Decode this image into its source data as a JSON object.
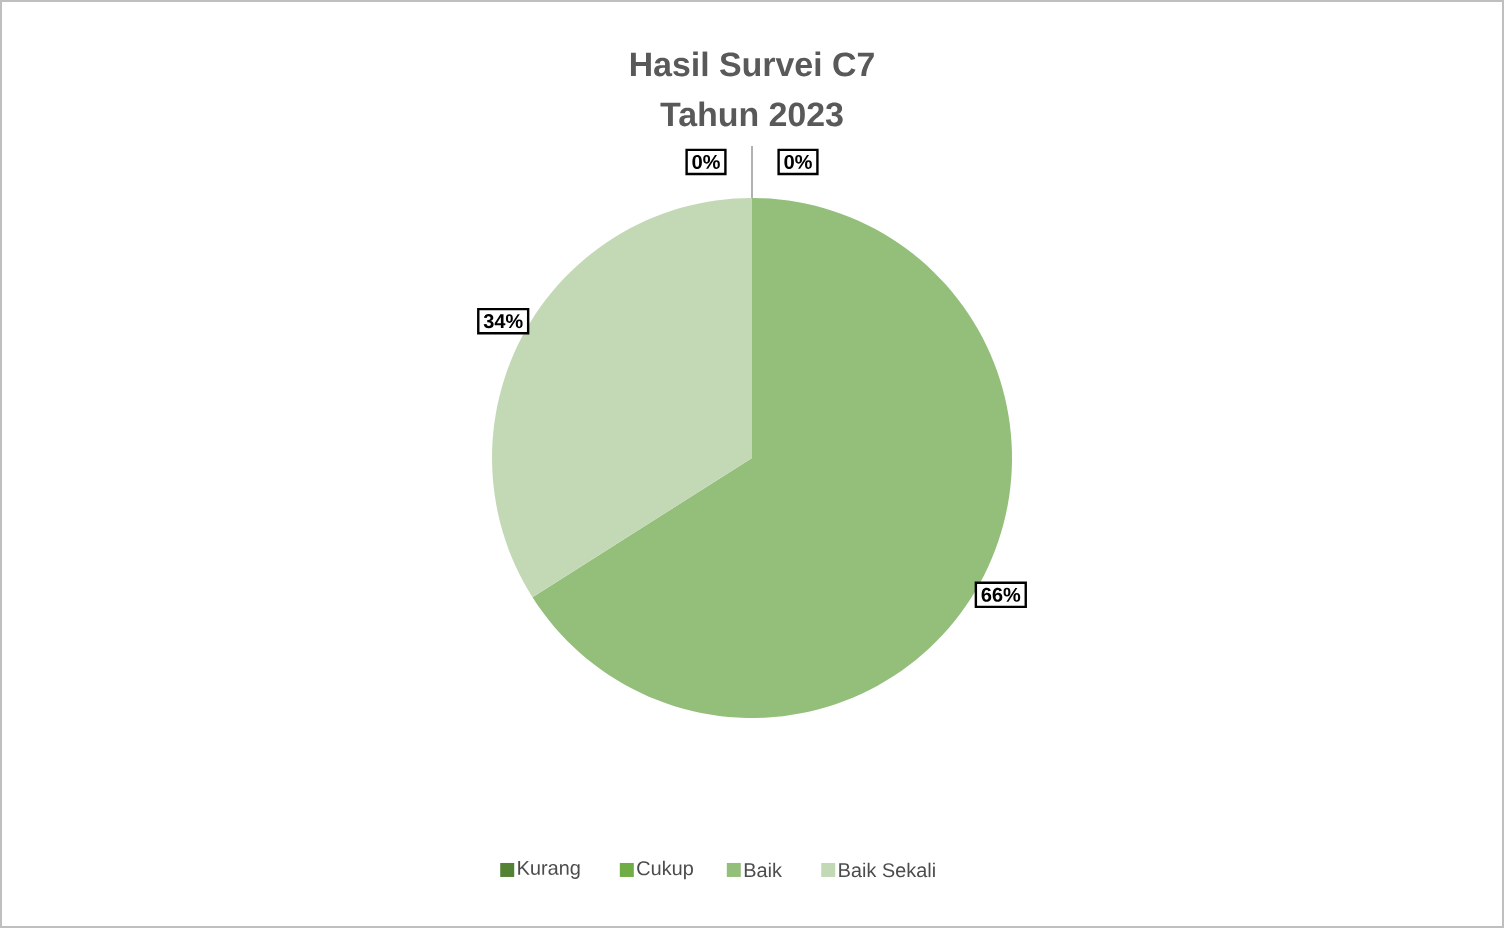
{
  "chart_data": {
    "type": "pie",
    "title": "Hasil Survei C7",
    "subtitle": "Tahun 2023",
    "categories": [
      "Kurang",
      "Cukup",
      "Baik",
      "Baik Sekali"
    ],
    "values": [
      0,
      0,
      66,
      34
    ],
    "colors": [
      "#548235",
      "#70ad47",
      "#93bf7a",
      "#c3d9b6"
    ],
    "value_labels": [
      "0%",
      "0%",
      "66%",
      "34%"
    ],
    "legend": "bottom"
  }
}
